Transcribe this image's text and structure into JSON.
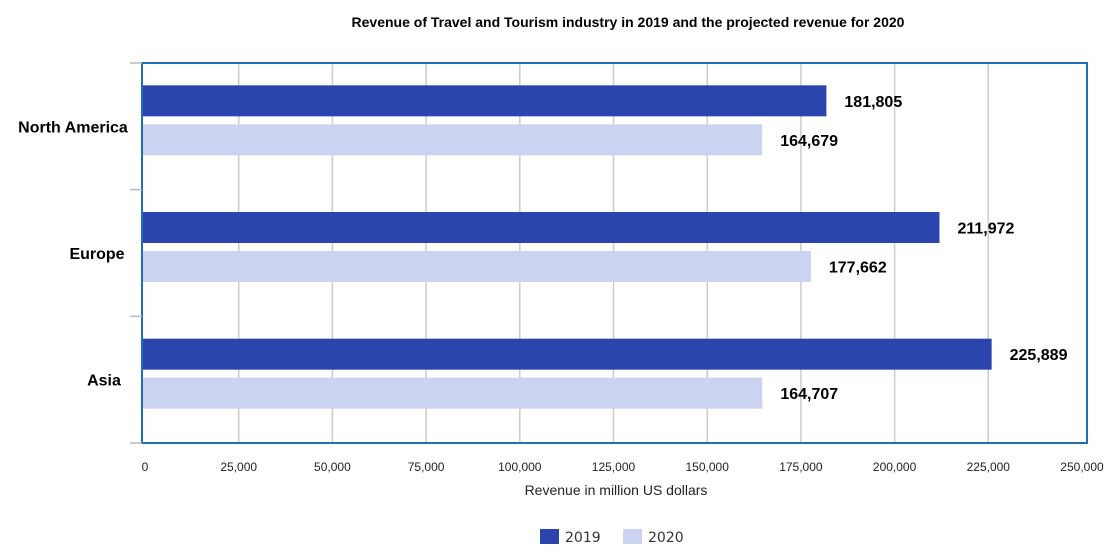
{
  "chart_data": {
    "type": "bar",
    "orientation": "horizontal",
    "title": "Revenue of Travel and Tourism industry in 2019 and the projected revenue for 2020",
    "xlabel": "Revenue in million US dollars",
    "ylabel": "",
    "categories": [
      "North America",
      "Europe",
      "Asia"
    ],
    "series": [
      {
        "name": "2019",
        "values": [
          181805,
          211972,
          225889
        ],
        "labels": [
          "181,805",
          "211,972",
          "225,889"
        ]
      },
      {
        "name": "2020",
        "values": [
          164679,
          177662,
          164707
        ],
        "labels": [
          "164,679",
          "177,662",
          "164,707"
        ]
      }
    ],
    "xlim": [
      0,
      250000
    ],
    "x_ticks": [
      0,
      25000,
      50000,
      75000,
      100000,
      125000,
      150000,
      175000,
      200000,
      225000,
      250000
    ],
    "x_tick_labels": [
      "0",
      "25,000",
      "50,000",
      "75,000",
      "100,000",
      "125,000",
      "150,000",
      "175,000",
      "200,000",
      "225,000",
      "250,000"
    ],
    "colors": {
      "2019": "#2a45ad",
      "2020": "#ccd3f0",
      "frame": "#1f6fb5",
      "grid": "#cccccc"
    },
    "grid": true,
    "legend_position": "bottom-center"
  }
}
